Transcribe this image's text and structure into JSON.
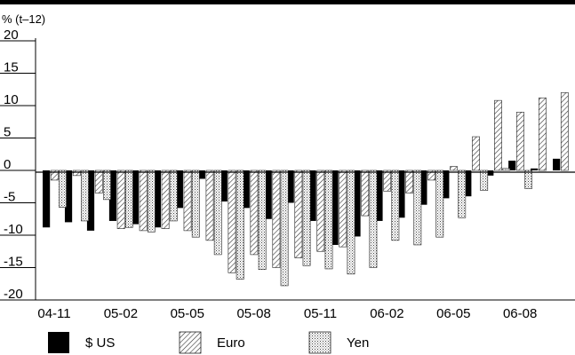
{
  "chart_data": {
    "type": "bar",
    "ylabel": "% (t–12)",
    "ylim": [
      -20,
      20
    ],
    "yticks": [
      "20",
      "15",
      "10",
      "5",
      "0",
      "-5",
      "-10",
      "-15",
      "-20"
    ],
    "categories": [
      "04-11",
      "04-12",
      "05-01",
      "05-02",
      "05-03",
      "05-04",
      "05-05",
      "05-06",
      "05-07",
      "05-08",
      "05-09",
      "05-10",
      "05-11",
      "05-12",
      "06-01",
      "06-02",
      "06-03",
      "06-04",
      "06-05",
      "06-06",
      "06-07",
      "06-08",
      "06-09",
      "06-10"
    ],
    "xtick_labels": [
      "04-11",
      "05-02",
      "05-05",
      "05-08",
      "05-11",
      "06-02",
      "06-05",
      "06-08"
    ],
    "series": [
      {
        "name": "$ US",
        "color": "#000000",
        "pattern": "solid",
        "values": [
          -8.8,
          -8.0,
          -9.3,
          -7.8,
          -8.3,
          -8.8,
          -5.8,
          -1.3,
          -4.8,
          -5.8,
          -7.5,
          -5.0,
          -7.8,
          -11.5,
          -10.2,
          -7.8,
          -7.3,
          -5.3,
          -4.3,
          -4.0,
          -0.8,
          1.5,
          0.3,
          1.8
        ]
      },
      {
        "name": "Euro",
        "color": "#555555",
        "pattern": "diagonal-hatch",
        "values": [
          -1.5,
          -0.8,
          -3.5,
          -9.0,
          -9.3,
          -9.0,
          -9.3,
          -10.8,
          -15.8,
          -13.0,
          -15.0,
          -13.5,
          -12.5,
          -11.8,
          -7.0,
          -3.2,
          -3.5,
          -1.5,
          0.6,
          5.2,
          10.8,
          9.0,
          11.2,
          12.0
        ]
      },
      {
        "name": "Yen",
        "color": "#777777",
        "pattern": "stipple",
        "values": [
          -5.7,
          -7.8,
          -4.5,
          -8.8,
          -9.5,
          -7.8,
          -10.3,
          -13.0,
          -16.8,
          -15.3,
          -17.8,
          -14.7,
          -15.2,
          -16.0,
          -15.0,
          -10.8,
          -11.5,
          -10.3,
          -7.3,
          -3.1,
          0.3,
          -2.8,
          null,
          null
        ]
      }
    ],
    "legend_position": "bottom"
  }
}
